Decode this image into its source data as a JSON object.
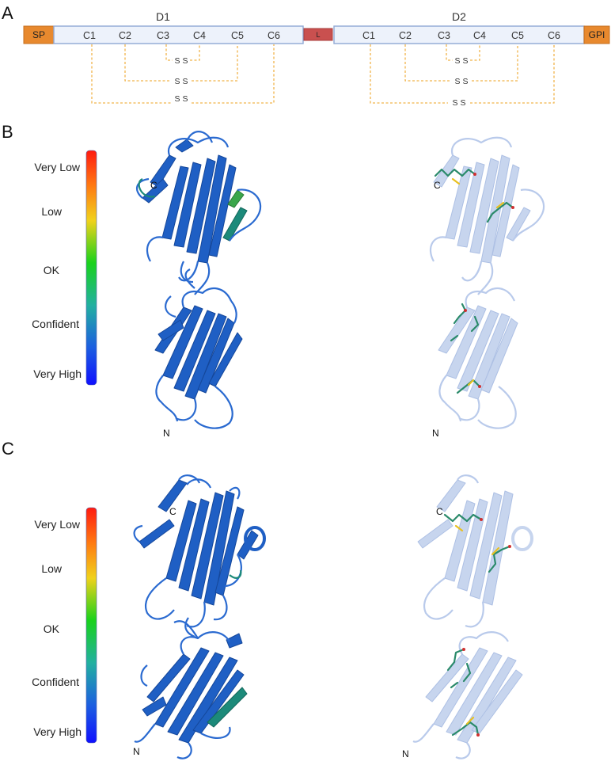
{
  "panels": {
    "a": "A",
    "b": "B",
    "c": "C"
  },
  "schematic": {
    "sp": "SP",
    "linker": "L",
    "gpi": "GPI",
    "d1": {
      "title": "D1",
      "cysteines": [
        "C1",
        "C2",
        "C3",
        "C4",
        "C5",
        "C6"
      ],
      "bonds": [
        "S S",
        "S S",
        "S S"
      ]
    },
    "d2": {
      "title": "D2",
      "cysteines": [
        "C1",
        "C2",
        "C3",
        "C4",
        "C5",
        "C6"
      ],
      "bonds": [
        "S S",
        "S S",
        "S S"
      ]
    },
    "colors": {
      "signal": "#e8892e",
      "domain_fill": "#edf2fb",
      "domain_border": "#8fa9d4",
      "linker": "#c9504f",
      "bond_line": "#f0b44a"
    }
  },
  "confidence_scale": {
    "labels": [
      "Very Low",
      "Low",
      "OK",
      "Confident",
      "Very High"
    ],
    "colors": [
      "#ff1a10",
      "#ff9a12",
      "#f0d21c",
      "#19d21c",
      "#22b0a0",
      "#1c5fe0",
      "#1010ff"
    ]
  },
  "models": {
    "b": {
      "c_terminus": "C",
      "n_terminus": "N"
    },
    "c": {
      "c_terminus": "C",
      "n_terminus": "N"
    },
    "colors": {
      "ribbon": "#1f5fc4",
      "ribbon_dark": "#15479a",
      "ribbon_faded": "#a9bde3",
      "teal": "#1c8a7a",
      "green": "#3aa64a"
    }
  }
}
